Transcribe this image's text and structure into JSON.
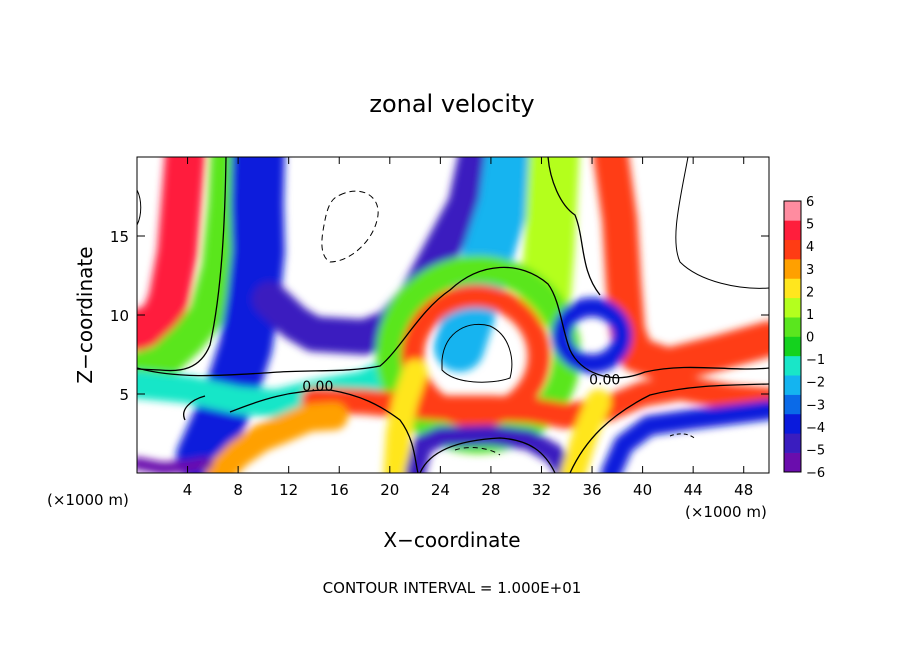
{
  "chart_data": {
    "type": "heatmap",
    "title": "zonal velocity",
    "xlabel": "X−coordinate",
    "ylabel": "Z−coordinate",
    "x_unit_left": "(×1000 m)",
    "x_unit_right": "(×1000 m)",
    "xlim": [
      0,
      50
    ],
    "ylim": [
      0,
      20
    ],
    "x_ticks": [
      4,
      8,
      12,
      16,
      20,
      24,
      28,
      32,
      36,
      40,
      44,
      48
    ],
    "x_tick_labels": [
      "4",
      "8",
      "12",
      "16",
      "20",
      "24",
      "28",
      "32",
      "36",
      "40",
      "44",
      "48"
    ],
    "y_ticks": [
      5,
      10,
      15
    ],
    "y_tick_labels": [
      "5",
      "10",
      "15"
    ],
    "colorbar": {
      "min": -6,
      "max": 6,
      "tick_labels": [
        "6",
        "5",
        "4",
        "3",
        "2",
        "1",
        "0",
        "−1",
        "−2",
        "−3",
        "−4",
        "−5",
        "−6"
      ],
      "colors": [
        "#6a0dad",
        "#3a1dbf",
        "#0a1adc",
        "#0a6ae8",
        "#14b4f0",
        "#19e6c8",
        "#14d21e",
        "#5ae61e",
        "#b4ff1e",
        "#ffe61e",
        "#ffa000",
        "#ff3c14",
        "#ff1e3c",
        "#ff8ca0"
      ]
    },
    "contour_labels": [
      {
        "text": "0.00",
        "x": 14.3,
        "z": 5.2
      },
      {
        "text": "0.00",
        "x": 37.0,
        "z": 5.6
      }
    ],
    "footer": "CONTOUR INTERVAL = 1.000E+01",
    "features": [
      {
        "kind": "band",
        "value": 4.5,
        "path": [
          [
            3.8,
            20
          ],
          [
            3.6,
            18
          ],
          [
            3.2,
            14
          ],
          [
            2.5,
            11
          ],
          [
            1.8,
            9.6
          ],
          [
            0,
            9
          ]
        ],
        "width": 3.2
      },
      {
        "kind": "band",
        "value": 0.5,
        "path": [
          [
            7.2,
            20
          ],
          [
            7,
            17
          ],
          [
            6.5,
            13
          ],
          [
            5.5,
            10
          ],
          [
            4,
            8.5
          ],
          [
            2,
            7
          ],
          [
            0,
            6.5
          ]
        ],
        "width": 2.8
      },
      {
        "kind": "band",
        "value": -3.5,
        "path": [
          [
            9.6,
            20
          ],
          [
            9.5,
            17
          ],
          [
            9.6,
            14
          ],
          [
            9.2,
            11
          ],
          [
            8.6,
            8
          ],
          [
            7.8,
            6
          ],
          [
            6.6,
            3.5
          ],
          [
            5.2,
            1
          ]
        ],
        "width": 4.2
      },
      {
        "kind": "band",
        "value": -1.5,
        "path": [
          [
            0,
            5.6
          ],
          [
            4,
            5.3
          ],
          [
            8,
            4.6
          ],
          [
            11,
            4.4
          ],
          [
            14,
            5.0
          ],
          [
            18,
            5.6
          ],
          [
            21,
            6.8
          ]
        ],
        "width": 2.2
      },
      {
        "kind": "band",
        "value": -5.0,
        "path": [
          [
            10.5,
            11
          ],
          [
            12.5,
            9.5
          ],
          [
            14,
            8.8
          ],
          [
            18,
            8.6
          ],
          [
            20,
            9.2
          ],
          [
            22,
            11
          ],
          [
            24,
            14
          ],
          [
            26,
            17
          ],
          [
            26.8,
            20
          ]
        ],
        "width": 2.8
      },
      {
        "kind": "band",
        "value": -2.5,
        "path": [
          [
            25.5,
            8
          ],
          [
            26.5,
            10.5
          ],
          [
            27.8,
            14
          ],
          [
            29,
            17
          ],
          [
            29.5,
            20
          ]
        ],
        "width": 4.0
      },
      {
        "kind": "band",
        "value": 1.0,
        "path": [
          [
            33,
            20
          ],
          [
            32.8,
            17
          ],
          [
            32.6,
            14
          ],
          [
            32.3,
            11
          ]
        ],
        "width": 4.0
      },
      {
        "kind": "band",
        "value": 4.0,
        "path": [
          [
            37.5,
            20
          ],
          [
            38.2,
            16
          ],
          [
            38.5,
            12
          ],
          [
            38.8,
            9
          ],
          [
            39.5,
            7.5
          ],
          [
            42,
            6.8
          ],
          [
            46,
            7.6
          ],
          [
            50,
            8.5
          ]
        ],
        "width": 2.8
      },
      {
        "kind": "ring",
        "value": 0.5,
        "cx": 27.0,
        "cz": 7.5,
        "rx": 7.0,
        "rz": 5.4,
        "width": 2.2
      },
      {
        "kind": "ring",
        "value": 3.5,
        "cx": 26.8,
        "cz": 7.4,
        "rx": 5.0,
        "rz": 3.8,
        "width": 1.8
      },
      {
        "kind": "band",
        "value": 3.5,
        "path": [
          [
            14,
            4.6
          ],
          [
            18,
            4.5
          ],
          [
            21,
            4.3
          ],
          [
            24,
            4.1
          ],
          [
            28,
            4.1
          ],
          [
            31,
            4.0
          ],
          [
            34,
            3.6
          ],
          [
            37,
            4.0
          ],
          [
            40,
            5.0
          ],
          [
            43,
            5.4
          ],
          [
            47,
            4.8
          ],
          [
            50,
            4.6
          ]
        ],
        "width": 2.0
      },
      {
        "kind": "band",
        "value": 3.0,
        "path": [
          [
            6.5,
            0
          ],
          [
            8,
            1.2
          ],
          [
            9.8,
            2.2
          ],
          [
            11.6,
            2.8
          ],
          [
            13.6,
            3.5
          ],
          [
            15.6,
            3.6
          ]
        ],
        "width": 2.2
      },
      {
        "kind": "band",
        "value": 2.5,
        "path": [
          [
            20.5,
            0
          ],
          [
            20.7,
            2.5
          ],
          [
            21.2,
            4.5
          ],
          [
            22,
            6.4
          ]
        ],
        "width": 2.0
      },
      {
        "kind": "band",
        "value": -4.5,
        "path": [
          [
            22,
            0
          ],
          [
            22.6,
            1.8
          ],
          [
            24,
            2.3
          ],
          [
            28,
            2.4
          ],
          [
            31,
            2.1
          ],
          [
            33,
            1.2
          ],
          [
            34,
            0
          ]
        ],
        "width": 1.6
      },
      {
        "kind": "band",
        "value": 2.0,
        "path": [
          [
            34.5,
            0
          ],
          [
            35.5,
            2.5
          ],
          [
            36.5,
            4.5
          ]
        ],
        "width": 2.0
      },
      {
        "kind": "band",
        "value": -4.0,
        "path": [
          [
            37.5,
            0
          ],
          [
            38.5,
            1.8
          ],
          [
            40.5,
            3.0
          ],
          [
            44,
            3.4
          ],
          [
            48,
            3.8
          ],
          [
            50,
            4.0
          ]
        ],
        "width": 1.6
      },
      {
        "kind": "ring",
        "value": -4.0,
        "cx": 36.0,
        "cz": 8.7,
        "rx": 2.4,
        "rz": 1.8,
        "width": 1.5
      },
      {
        "kind": "band",
        "value": -5.5,
        "path": [
          [
            0,
            0.6
          ],
          [
            2,
            0.3
          ],
          [
            4,
            0.4
          ],
          [
            5.5,
            0.6
          ]
        ],
        "width": 1.0
      }
    ]
  }
}
